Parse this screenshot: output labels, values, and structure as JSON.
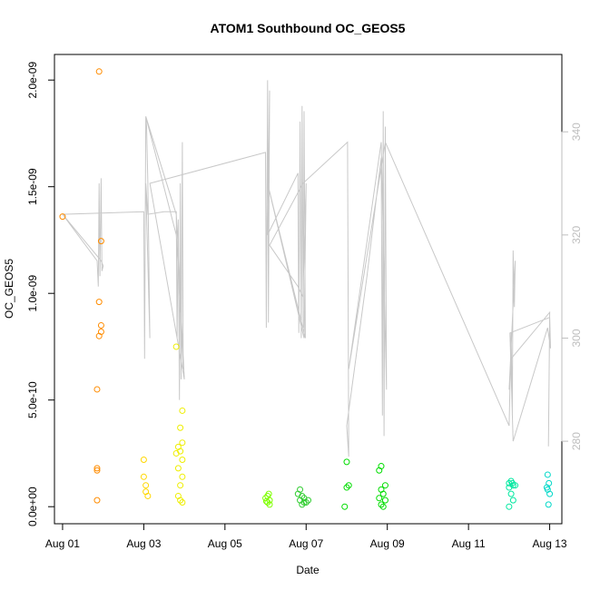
{
  "chart_data": {
    "type": "scatter",
    "title": "ATOM1 Southbound OC_GEOS5",
    "xlabel": "Date",
    "ylabel": "OC_GEOS5",
    "x_unit": "days (Aug 2016)",
    "x_range": [
      0.8,
      13.3
    ],
    "ylim": [
      -8e-11,
      2.12e-09
    ],
    "y_ticks": [
      0,
      5e-10,
      1e-09,
      1.5e-09,
      2e-09
    ],
    "y_tick_labels": [
      "0.0e+00",
      "5.0e-10",
      "1.0e-09",
      "1.5e-09",
      "2.0e-09"
    ],
    "x_ticks": [
      1,
      3,
      5,
      7,
      9,
      11,
      13
    ],
    "x_tick_labels": [
      "Aug 01",
      "Aug 03",
      "Aug 05",
      "Aug 07",
      "Aug 09",
      "Aug 11",
      "Aug 13"
    ],
    "y2_range": [
      264,
      355
    ],
    "y2_ticks": [
      280,
      300,
      320,
      340
    ],
    "y2_tick_labels": [
      "280",
      "300",
      "320",
      "340"
    ],
    "grid": false,
    "legend": "none",
    "series": [
      {
        "color": "#ff8c00",
        "points": [
          [
            1.0,
            1.36e-09
          ],
          [
            1.9,
            2.04e-09
          ],
          [
            1.95,
            1.245e-09
          ],
          [
            1.9,
            9.6e-10
          ],
          [
            1.95,
            8.5e-10
          ],
          [
            1.9,
            8e-10
          ],
          [
            1.95,
            8.2e-10
          ],
          [
            1.85,
            5.5e-10
          ],
          [
            1.85,
            1.8e-10
          ],
          [
            1.85,
            1.7e-10
          ],
          [
            1.85,
            3e-11
          ]
        ]
      },
      {
        "color": "#ffd700",
        "points": [
          [
            3.0,
            2.2e-10
          ],
          [
            3.0,
            1.4e-10
          ],
          [
            3.05,
            1e-10
          ],
          [
            3.05,
            7e-11
          ],
          [
            3.1,
            5e-11
          ]
        ]
      },
      {
        "color": "#eeee00",
        "points": [
          [
            3.8,
            7.5e-10
          ],
          [
            3.95,
            4.5e-10
          ],
          [
            3.9,
            3.7e-10
          ],
          [
            3.95,
            3e-10
          ],
          [
            3.85,
            2.8e-10
          ],
          [
            3.9,
            2.6e-10
          ],
          [
            3.8,
            2.5e-10
          ],
          [
            3.95,
            2.2e-10
          ],
          [
            3.85,
            1.8e-10
          ],
          [
            3.95,
            1.4e-10
          ],
          [
            3.9,
            1e-10
          ],
          [
            3.85,
            5e-11
          ],
          [
            3.9,
            3e-11
          ],
          [
            3.95,
            2e-11
          ]
        ]
      },
      {
        "color": "#7fff00",
        "points": [
          [
            6.05,
            5e-11
          ],
          [
            6.1,
            3e-11
          ],
          [
            6.05,
            2e-11
          ],
          [
            6.1,
            1e-11
          ],
          [
            6.0,
            4e-11
          ],
          [
            6.08,
            6e-11
          ],
          [
            6.02,
            2.5e-11
          ]
        ]
      },
      {
        "color": "#32cd32",
        "points": [
          [
            6.85,
            8e-11
          ],
          [
            6.8,
            6e-11
          ],
          [
            6.9,
            5e-11
          ],
          [
            6.95,
            4e-11
          ],
          [
            6.85,
            3e-11
          ],
          [
            7.0,
            2e-11
          ],
          [
            6.9,
            1e-11
          ],
          [
            7.05,
            3e-11
          ],
          [
            6.95,
            2e-11
          ]
        ]
      },
      {
        "color": "#00dd00",
        "points": [
          [
            8.0,
            2.1e-10
          ],
          [
            8.05,
            1e-10
          ],
          [
            8.0,
            9e-11
          ],
          [
            7.95,
            0.0
          ],
          [
            8.85,
            1.9e-10
          ],
          [
            8.8,
            1.7e-10
          ],
          [
            8.95,
            1e-10
          ],
          [
            8.85,
            8e-11
          ],
          [
            8.9,
            6e-11
          ],
          [
            8.8,
            4e-11
          ],
          [
            8.95,
            3e-11
          ],
          [
            8.85,
            1e-11
          ],
          [
            8.9,
            0.0
          ]
        ]
      },
      {
        "color": "#00e8a0",
        "points": [
          [
            12.0,
            1.1e-10
          ],
          [
            12.05,
            1.2e-10
          ],
          [
            12.1,
            1e-10
          ],
          [
            12.0,
            9e-11
          ],
          [
            12.05,
            6e-11
          ],
          [
            12.1,
            3e-11
          ],
          [
            12.0,
            0.0
          ],
          [
            12.15,
            1e-10
          ],
          [
            12.08,
            1.1e-10
          ]
        ]
      },
      {
        "color": "#00d8c8",
        "points": [
          [
            12.95,
            1.5e-10
          ],
          [
            12.98,
            1.1e-10
          ],
          [
            12.95,
            8e-11
          ],
          [
            13.0,
            6e-11
          ],
          [
            12.97,
            1e-11
          ],
          [
            12.93,
            9e-11
          ]
        ]
      }
    ],
    "line_series": {
      "color": "#c8c8c8",
      "axis": "right",
      "points": [
        [
          1.0,
          324
        ],
        [
          1.85,
          315
        ],
        [
          1.88,
          310
        ],
        [
          1.9,
          330
        ],
        [
          1.92,
          312
        ],
        [
          1.95,
          331
        ],
        [
          1.97,
          313
        ],
        [
          2.0,
          314
        ],
        [
          1.95,
          315
        ],
        [
          1.0,
          324
        ],
        [
          3.0,
          324.5
        ],
        [
          3.02,
          296
        ],
        [
          3.05,
          343
        ],
        [
          3.07,
          341
        ],
        [
          3.1,
          330
        ],
        [
          3.15,
          300
        ],
        [
          3.05,
          330
        ],
        [
          3.1,
          324
        ],
        [
          3.5,
          324.5
        ],
        [
          3.8,
          324.5
        ],
        [
          3.82,
          300
        ],
        [
          3.85,
          323
        ],
        [
          3.88,
          288
        ],
        [
          3.9,
          330
        ],
        [
          3.92,
          292
        ],
        [
          3.95,
          338
        ],
        [
          3.97,
          294
        ],
        [
          3.83,
          320
        ],
        [
          3.8,
          324
        ],
        [
          3.05,
          343
        ],
        [
          3.8,
          320
        ],
        [
          3.95,
          300
        ],
        [
          4.0,
          292
        ],
        [
          3.15,
          330
        ],
        [
          6.0,
          336
        ],
        [
          6.02,
          302
        ],
        [
          6.05,
          350
        ],
        [
          6.07,
          303
        ],
        [
          6.1,
          348
        ],
        [
          6.05,
          320
        ],
        [
          6.8,
          332
        ],
        [
          6.82,
          301
        ],
        [
          6.85,
          342
        ],
        [
          6.88,
          300
        ],
        [
          6.9,
          345
        ],
        [
          6.93,
          302
        ],
        [
          6.95,
          344
        ],
        [
          6.98,
          300
        ],
        [
          6.05,
          330
        ],
        [
          6.95,
          300
        ],
        [
          7.0,
          330
        ],
        [
          6.92,
          308
        ],
        [
          6.8,
          310
        ],
        [
          6.1,
          318
        ],
        [
          6.92,
          330
        ],
        [
          8.02,
          338
        ],
        [
          8.05,
          277
        ],
        [
          8.0,
          283
        ],
        [
          8.5,
          312
        ],
        [
          8.85,
          335
        ],
        [
          8.88,
          285
        ],
        [
          8.9,
          344
        ],
        [
          8.92,
          281
        ],
        [
          8.95,
          341
        ],
        [
          8.98,
          290
        ],
        [
          8.85,
          338
        ],
        [
          8.05,
          294
        ],
        [
          8.95,
          338
        ],
        [
          12.0,
          283
        ],
        [
          12.05,
          301
        ],
        [
          12.08,
          285
        ],
        [
          12.1,
          317
        ],
        [
          12.13,
          306
        ],
        [
          12.15,
          315
        ],
        [
          12.0,
          290
        ],
        [
          12.05,
          296
        ],
        [
          13.0,
          305
        ],
        [
          12.97,
          279
        ],
        [
          13.0,
          304
        ],
        [
          13.02,
          298
        ],
        [
          12.95,
          302
        ],
        [
          12.1,
          280
        ],
        [
          12.02,
          301
        ],
        [
          13.0,
          304
        ]
      ]
    }
  }
}
